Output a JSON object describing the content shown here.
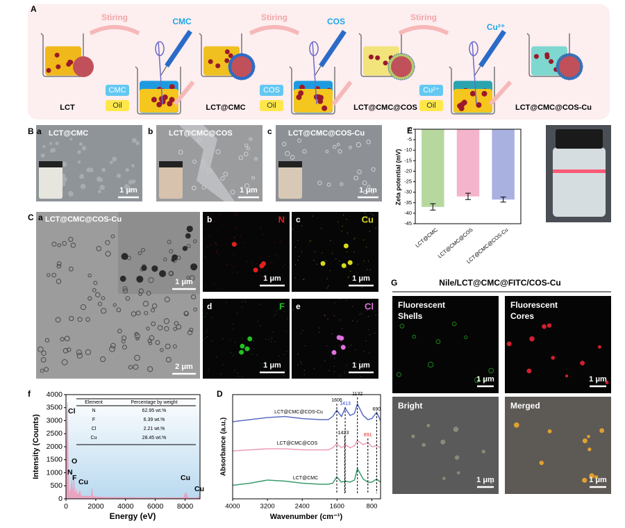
{
  "figure": {
    "panel_a": {
      "label": "A",
      "steps": [
        "Stiring",
        "Stiring",
        "Stiring"
      ],
      "reagents": [
        "CMC",
        "COS",
        "Cu²⁺"
      ],
      "products": [
        "LCT",
        "LCT@CMC",
        "LCT@CMC@COS",
        "LCT@CMC@COS-Cu"
      ],
      "tags": [
        [
          "CMC",
          "Oil"
        ],
        [
          "COS",
          "Oil"
        ],
        [
          "Cu²⁺",
          "Oil"
        ]
      ]
    },
    "panel_b": {
      "label": "B",
      "images": [
        {
          "label": "a",
          "title": "LCT@CMC",
          "scale": "1 μm"
        },
        {
          "label": "b",
          "title": "LCT@CMC@COS",
          "scale": "1 μm"
        },
        {
          "label": "c",
          "title": "LCT@CMC@COS-Cu",
          "scale": "1 μm"
        }
      ]
    },
    "panel_c": {
      "label": "C",
      "images": [
        {
          "label": "a",
          "title": "LCT@CMC@COS-Cu",
          "scales": [
            "1 μm",
            "2 μm"
          ]
        },
        {
          "label": "b",
          "title": "N",
          "scale": "1 μm"
        },
        {
          "label": "c",
          "title": "Cu",
          "scale": "1 μm"
        },
        {
          "label": "d",
          "title": "F",
          "scale": "1 μm"
        },
        {
          "label": "e",
          "title": "Cl",
          "scale": "1 μm"
        }
      ]
    },
    "panel_f": {
      "label": "F"
    },
    "panel_g": {
      "label": "G",
      "title": "Nile/LCT@CMC@FITC/COS-Cu",
      "images": [
        {
          "title": [
            "Fluorescent",
            "Shells"
          ],
          "scale": "1 μm"
        },
        {
          "title": [
            "Fluorescent",
            "Cores"
          ],
          "scale": "1 μm"
        },
        {
          "title": [
            "Bright"
          ],
          "scale": "1 μm"
        },
        {
          "title": [
            "Merged"
          ],
          "scale": "1 μm"
        }
      ]
    }
  },
  "chart_data": [
    {
      "type": "bar",
      "label": "E",
      "ylabel": "Zeta potential (mV)",
      "categories": [
        "LCT@CMC",
        "LCT@CMC@COS",
        "LCT@CMC@COS-Cu"
      ],
      "values": [
        -37,
        -32,
        -33.5
      ],
      "errors": [
        1.5,
        1.5,
        1.2
      ],
      "colors": [
        "#a9d18e",
        "#f2a7c3",
        "#9aa3dc"
      ],
      "ylim": [
        -45,
        0
      ],
      "yticks": [
        -45,
        -40,
        -35,
        -30,
        -25,
        -20,
        -15,
        -10,
        -5,
        0
      ]
    },
    {
      "type": "area",
      "label": "f",
      "xlabel": "Energy (eV)",
      "ylabel": "Intensity (Counts)",
      "x": [
        0,
        50,
        100,
        150,
        200,
        300,
        390,
        430,
        500,
        525,
        560,
        650,
        680,
        720,
        800,
        930,
        1000,
        1200,
        1700,
        1740,
        1800,
        1900,
        2500,
        4000,
        6000,
        7900,
        8040,
        8200,
        8800,
        8900,
        9000
      ],
      "values": [
        0,
        2000,
        3700,
        1200,
        300,
        250,
        700,
        300,
        400,
        900,
        300,
        200,
        400,
        200,
        150,
        300,
        120,
        100,
        100,
        400,
        100,
        80,
        60,
        50,
        40,
        40,
        250,
        40,
        30,
        80,
        30
      ],
      "color": "#f29bb8",
      "xlim": [
        0,
        9000
      ],
      "ylim": [
        0,
        4000
      ],
      "xticks": [
        0,
        2000,
        4000,
        6000,
        8000
      ],
      "yticks": [
        0,
        500,
        1000,
        1500,
        2000,
        2500,
        3000,
        3500,
        4000
      ],
      "peak_labels": [
        "Cl",
        "O",
        "N",
        "F",
        "Cu",
        "Cu",
        "Cu"
      ],
      "table": {
        "header": [
          "Element",
          "Percentage by weight"
        ],
        "rows": [
          [
            "N",
            "62.95 wt.%"
          ],
          [
            "F",
            "6.39 wt.%"
          ],
          [
            "Cl",
            "2.21 wt.%"
          ],
          [
            "Cu",
            "28.45 wt.%"
          ]
        ]
      }
    },
    {
      "type": "line",
      "label": "D",
      "xlabel": "Wavenumber (cm⁻¹)",
      "ylabel": "Absorbance (a.u.)",
      "xlim": [
        4000,
        600
      ],
      "ylim": [
        0,
        10
      ],
      "xticks": [
        4000,
        3200,
        2400,
        1600,
        800
      ],
      "x": [
        4000,
        3600,
        3200,
        2800,
        2400,
        2000,
        1800,
        1700,
        1606,
        1500,
        1423,
        1413,
        1300,
        1200,
        1132,
        1000,
        891,
        800,
        690,
        600
      ],
      "series": [
        {
          "name": "LCT@CMC@COS-Cu",
          "color": "#5a6cc4",
          "values": [
            7.4,
            7.6,
            7.8,
            7.9,
            7.7,
            7.6,
            7.6,
            7.9,
            8.5,
            7.9,
            8.6,
            8.7,
            8.0,
            8.2,
            9.1,
            8.0,
            7.6,
            7.7,
            8.3,
            7.5
          ]
        },
        {
          "name": "LCT@CMC@COS",
          "color": "#ee9bb5",
          "values": [
            4.6,
            4.7,
            4.8,
            4.8,
            4.7,
            4.7,
            4.7,
            4.9,
            5.3,
            4.9,
            5.1,
            5.2,
            4.9,
            5.1,
            5.6,
            5.2,
            5.4,
            5.0,
            5.1,
            4.9
          ]
        },
        {
          "name": "LCT@CMC",
          "color": "#3a9a6a",
          "values": [
            1.3,
            1.5,
            1.8,
            1.7,
            1.5,
            1.4,
            1.4,
            1.5,
            2.1,
            1.6,
            1.7,
            1.7,
            1.6,
            1.8,
            2.9,
            1.9,
            1.6,
            1.6,
            1.9,
            1.6
          ]
        }
      ],
      "peaks": [
        1606,
        1413,
        1132,
        690,
        1423,
        891
      ],
      "peak_colors": [
        "#000000",
        "#2a3fd0",
        "#000000",
        "#000000",
        "#000000",
        "#e02020"
      ]
    }
  ]
}
